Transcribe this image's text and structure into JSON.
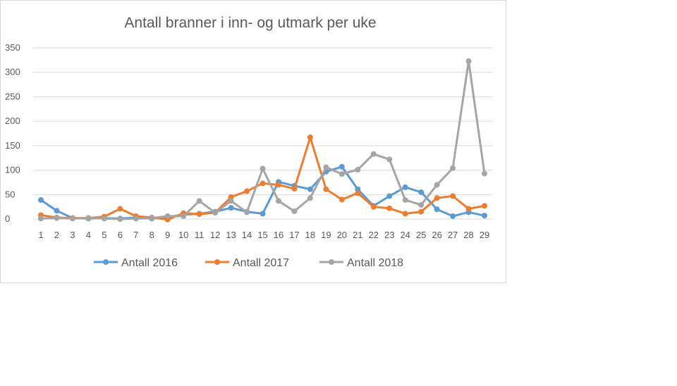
{
  "chart_data": {
    "type": "line",
    "title": "Antall branner i inn- og utmark per uke",
    "xlabel": "",
    "ylabel": "",
    "x": [
      1,
      2,
      3,
      4,
      5,
      6,
      7,
      8,
      9,
      10,
      11,
      12,
      13,
      14,
      15,
      16,
      17,
      18,
      19,
      20,
      21,
      22,
      23,
      24,
      25,
      26,
      27,
      28,
      29
    ],
    "x_tick_labels": [
      "1",
      "2",
      "3",
      "4",
      "5",
      "6",
      "7",
      "8",
      "9",
      "10",
      "11",
      "12",
      "13",
      "14",
      "15",
      "16",
      "17",
      "18",
      "19",
      "20",
      "21",
      "22",
      "23",
      "24",
      "25",
      "26",
      "27",
      "28",
      "29"
    ],
    "ylim": [
      0,
      350
    ],
    "y_ticks": [
      0,
      50,
      100,
      150,
      200,
      250,
      300,
      350
    ],
    "y_tick_labels": [
      "0",
      "50",
      "100",
      "150",
      "200",
      "250",
      "300",
      "350"
    ],
    "grid": true,
    "legend_position": "bottom",
    "series": [
      {
        "name": "Antall 2016",
        "color": "#5b9bd5",
        "values": [
          39,
          17,
          2,
          1,
          2,
          1,
          3,
          1,
          4,
          9,
          11,
          15,
          23,
          15,
          11,
          76,
          68,
          61,
          97,
          107,
          61,
          27,
          47,
          65,
          55,
          20,
          6,
          14,
          7
        ]
      },
      {
        "name": "Antall 2017",
        "color": "#ed7d31",
        "values": [
          8,
          3,
          2,
          2,
          5,
          21,
          6,
          3,
          -1,
          12,
          10,
          13,
          45,
          57,
          73,
          70,
          62,
          167,
          61,
          40,
          53,
          25,
          22,
          11,
          15,
          43,
          47,
          21,
          27
        ]
      },
      {
        "name": "Antall 2018",
        "color": "#a5a5a5",
        "values": [
          1,
          2,
          1,
          2,
          1,
          0,
          1,
          2,
          6,
          6,
          37,
          13,
          37,
          14,
          103,
          37,
          16,
          43,
          106,
          92,
          101,
          133,
          122,
          39,
          29,
          70,
          104,
          323,
          93
        ]
      }
    ]
  }
}
